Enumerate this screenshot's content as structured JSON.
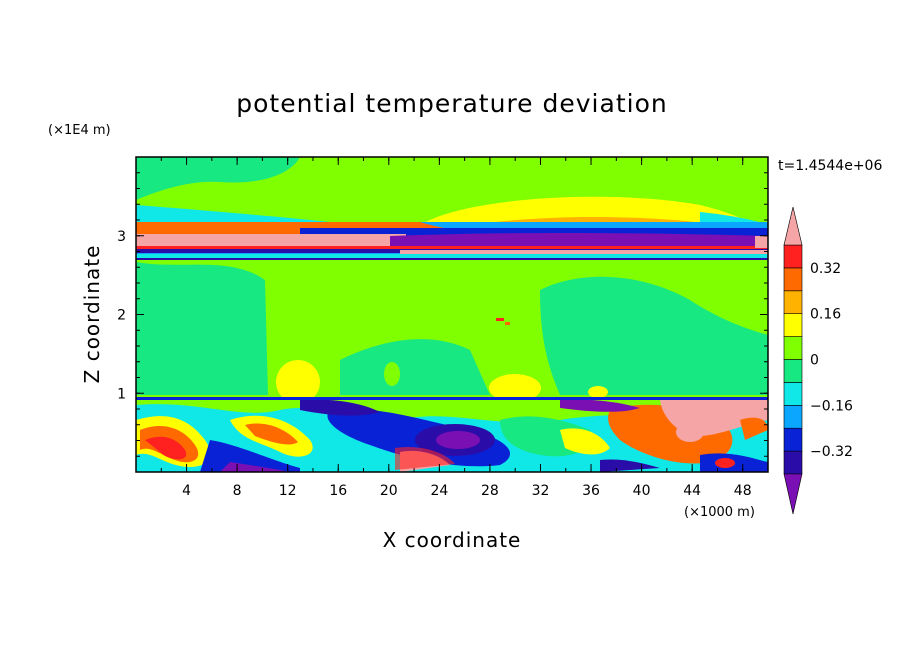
{
  "chart_data": {
    "type": "heatmap",
    "title": "potential temperature deviation",
    "xlabel": "X coordinate",
    "ylabel": "Z coordinate",
    "x_scale_label": "(×1000 m)",
    "y_scale_label": "(×1E4 m)",
    "time_label": "t=1.4544e+06",
    "xlim": [
      0,
      50
    ],
    "ylim": [
      0,
      4
    ],
    "x_ticks": [
      "4",
      "8",
      "12",
      "16",
      "20",
      "24",
      "28",
      "32",
      "36",
      "40",
      "44",
      "48"
    ],
    "y_ticks": [
      "1",
      "2",
      "3"
    ],
    "colorbar": {
      "levels": [
        -0.4,
        -0.32,
        -0.24,
        -0.16,
        -0.08,
        0,
        0.08,
        0.16,
        0.24,
        0.32,
        0.4
      ],
      "tick_labels": [
        "0.32",
        "0.16",
        "0",
        "−0.16",
        "−0.32"
      ],
      "colors": [
        "#7a0fb3",
        "#2a0ca8",
        "#0a22d6",
        "#0aa6ff",
        "#10e8e8",
        "#18e882",
        "#80ff00",
        "#ffff00",
        "#ffb300",
        "#ff6a00",
        "#ff2020",
        "#f5a5a5"
      ]
    },
    "bands": [
      {
        "z": [
          0,
          0.95
        ],
        "pattern": "turbulent mixed anomalies from -0.4 to 0.4"
      },
      {
        "z": [
          0.95,
          2.7
        ],
        "pattern": "near zero, 0 to 0.08"
      },
      {
        "z": [
          2.7,
          3.15
        ],
        "pattern": "strong layered anomalies, -0.4 to 0.4"
      },
      {
        "z": [
          3.15,
          4
        ],
        "pattern": "near zero with weak positive arch 0.08 to 0.16"
      }
    ]
  }
}
